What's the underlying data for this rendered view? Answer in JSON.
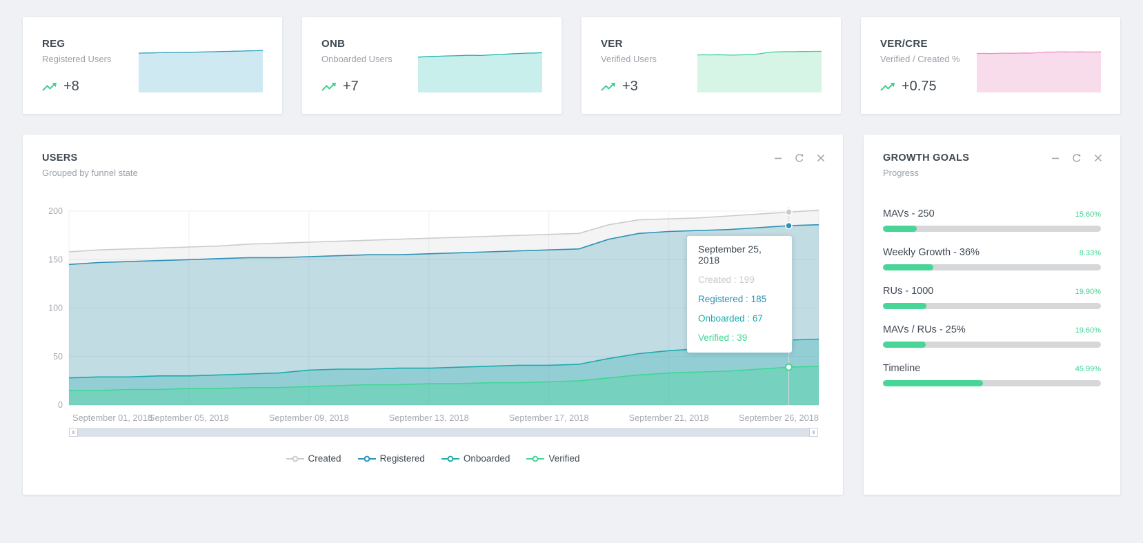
{
  "page": {
    "background": "#eff1f4",
    "accent_green": "#3ecf8e"
  },
  "stat_cards": [
    {
      "code": "REG",
      "label": "Registered Users",
      "delta": "+8",
      "trend": "up"
    },
    {
      "code": "ONB",
      "label": "Onboarded Users",
      "delta": "+7",
      "trend": "up"
    },
    {
      "code": "VER",
      "label": "Verified Users",
      "delta": "+3",
      "trend": "up"
    },
    {
      "code": "VER/CRE",
      "label": "Verified / Created %",
      "delta": "+0.75",
      "trend": "up"
    }
  ],
  "users_panel": {
    "title": "USERS",
    "subtitle": "Grouped by funnel state",
    "controls": {
      "minimize": "minimize",
      "refresh": "refresh",
      "close": "close"
    },
    "tooltip": {
      "date": "September 25, 2018",
      "sep": " : ",
      "rows": [
        {
          "label": "Created",
          "value": 199
        },
        {
          "label": "Registered",
          "value": 185
        },
        {
          "label": "Onboarded",
          "value": 67
        },
        {
          "label": "Verified",
          "value": 39
        }
      ]
    }
  },
  "growth_goals": {
    "title": "GROWTH GOALS",
    "subtitle": "Progress",
    "accent_color": "#3fd494",
    "track_color": "#d5d7d9",
    "fill_color": "#47d598",
    "goals": [
      {
        "label": "MAVs - 250",
        "percent_label": "15.60%",
        "bar_percent": 15.6
      },
      {
        "label": "Weekly Growth - 36%",
        "percent_label": "8.33%",
        "bar_percent": 23
      },
      {
        "label": "RUs - 1000",
        "percent_label": "19.90%",
        "bar_percent": 19.9
      },
      {
        "label": "MAVs / RUs - 25%",
        "percent_label": "19.60%",
        "bar_percent": 19.6
      },
      {
        "label": "Timeline",
        "percent_label": "45.99%",
        "bar_percent": 45.99
      }
    ]
  },
  "chart_data": [
    {
      "id": "users-by-funnel-state",
      "type": "area",
      "title": "USERS",
      "subtitle": "Grouped by funnel state",
      "ylim": [
        0,
        200
      ],
      "y_ticks": [
        0,
        50,
        100,
        150,
        200
      ],
      "grid": true,
      "legend_position": "bottom",
      "x": [
        "September 01, 2018",
        "September 02, 2018",
        "September 03, 2018",
        "September 04, 2018",
        "September 05, 2018",
        "September 06, 2018",
        "September 07, 2018",
        "September 08, 2018",
        "September 09, 2018",
        "September 10, 2018",
        "September 11, 2018",
        "September 12, 2018",
        "September 13, 2018",
        "September 14, 2018",
        "September 15, 2018",
        "September 16, 2018",
        "September 17, 2018",
        "September 18, 2018",
        "September 19, 2018",
        "September 20, 2018",
        "September 21, 2018",
        "September 22, 2018",
        "September 23, 2018",
        "September 24, 2018",
        "September 25, 2018",
        "September 26, 2018"
      ],
      "tick_labels": [
        "September 01, 2018",
        "September 05, 2018",
        "September 09, 2018",
        "September 13, 2018",
        "September 17, 2018",
        "September 21, 2018",
        "September 26, 2018"
      ],
      "tick_indices": [
        0,
        4,
        8,
        12,
        16,
        20,
        25
      ],
      "series": [
        {
          "name": "Created",
          "line_color": "#c9ccce",
          "fill_color": "#b9bdc2",
          "fill_opacity": 0.16,
          "values": [
            158,
            160,
            161,
            162,
            163,
            164,
            166,
            167,
            168,
            169,
            170,
            171,
            172,
            173,
            174,
            175,
            176,
            177,
            186,
            191,
            192,
            193,
            195,
            197,
            199,
            201
          ]
        },
        {
          "name": "Registered",
          "line_color": "#2c92b5",
          "fill_color": "#2c92b5",
          "fill_opacity": 0.25,
          "values": [
            145,
            147,
            148,
            149,
            150,
            151,
            152,
            152,
            153,
            154,
            155,
            155,
            156,
            157,
            158,
            159,
            160,
            161,
            171,
            177,
            179,
            180,
            181,
            183,
            185,
            186
          ]
        },
        {
          "name": "Onboarded",
          "line_color": "#1aabab",
          "fill_color": "#1aabab",
          "fill_opacity": 0.28,
          "values": [
            28,
            29,
            29,
            30,
            30,
            31,
            32,
            33,
            36,
            37,
            37,
            38,
            38,
            39,
            40,
            41,
            41,
            42,
            48,
            53,
            56,
            58,
            61,
            64,
            67,
            68
          ]
        },
        {
          "name": "Verified",
          "line_color": "#41d694",
          "fill_color": "#41d694",
          "fill_opacity": 0.35,
          "values": [
            15,
            15,
            16,
            16,
            17,
            17,
            18,
            18,
            19,
            20,
            21,
            21,
            22,
            22,
            23,
            23,
            24,
            25,
            28,
            31,
            33,
            34,
            35,
            37,
            39,
            40
          ]
        }
      ],
      "hover": {
        "index": 24,
        "date": "September 25, 2018",
        "values": {
          "Created": 199,
          "Registered": 185,
          "Onboarded": 67,
          "Verified": 39
        }
      }
    },
    {
      "id": "spark-reg",
      "type": "area",
      "card": "REG",
      "line_color": "#2a9fc0",
      "fill_color": "#cfe9f3",
      "values": [
        89,
        89.3,
        89.6,
        90,
        90.2,
        90.5,
        90.8,
        91,
        91.3,
        91.6,
        92,
        92.2,
        92.6,
        93,
        93.4,
        93.8,
        94.2,
        94.6,
        95
      ]
    },
    {
      "id": "spark-onb",
      "type": "area",
      "card": "ONB",
      "line_color": "#1db5ad",
      "fill_color": "#c8efec",
      "values": [
        80,
        81,
        81.6,
        82,
        82.6,
        83,
        83.4,
        84,
        84.2,
        83.8,
        84.6,
        85.4,
        86,
        87,
        87.8,
        88.4,
        89,
        89.4,
        90
      ]
    },
    {
      "id": "spark-ver",
      "type": "area",
      "card": "VER",
      "line_color": "#3ecf96",
      "fill_color": "#d6f5e6",
      "values": [
        85,
        85.3,
        85,
        85.4,
        85,
        84.6,
        85,
        85.4,
        86,
        87.5,
        90,
        91.5,
        92,
        92.3,
        92.3,
        92.6,
        92.6,
        93,
        93
      ]
    },
    {
      "id": "spark-vercre",
      "type": "area",
      "card": "VER/CRE",
      "line_color": "#f08fc3",
      "fill_color": "#f9dcec",
      "values": [
        88,
        88.4,
        88,
        88.5,
        89,
        88.6,
        89,
        89.4,
        89,
        90.5,
        91.5,
        91.4,
        92,
        92,
        91.6,
        92,
        91.5,
        91.6,
        92
      ]
    }
  ]
}
